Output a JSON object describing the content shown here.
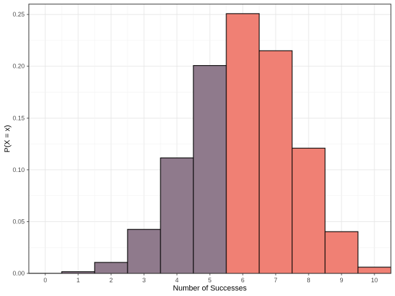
{
  "chart_data": {
    "type": "bar",
    "xlabel": "Number of Successes",
    "ylabel": "P(X = x)",
    "categories": [
      "0",
      "1",
      "2",
      "3",
      "4",
      "5",
      "6",
      "7",
      "8",
      "9",
      "10"
    ],
    "x": [
      0,
      1,
      2,
      3,
      4,
      5,
      6,
      7,
      8,
      9,
      10
    ],
    "values": [
      0.0001,
      0.0016,
      0.0106,
      0.0425,
      0.1115,
      0.2007,
      0.2508,
      0.215,
      0.1209,
      0.0403,
      0.006
    ],
    "groups": [
      {
        "range": [
          0,
          5
        ],
        "color": "#8f7a8c"
      },
      {
        "range": [
          6,
          10
        ],
        "color": "#f08074"
      }
    ],
    "xlim": [
      -0.5,
      10.5
    ],
    "ylim": [
      0,
      0.26
    ],
    "yticks": [
      0.0,
      0.05,
      0.1,
      0.15,
      0.2,
      0.25
    ],
    "ytick_labels": [
      "0.00",
      "0.05",
      "0.10",
      "0.15",
      "0.20",
      "0.25"
    ],
    "grid": true,
    "legend": "none"
  }
}
